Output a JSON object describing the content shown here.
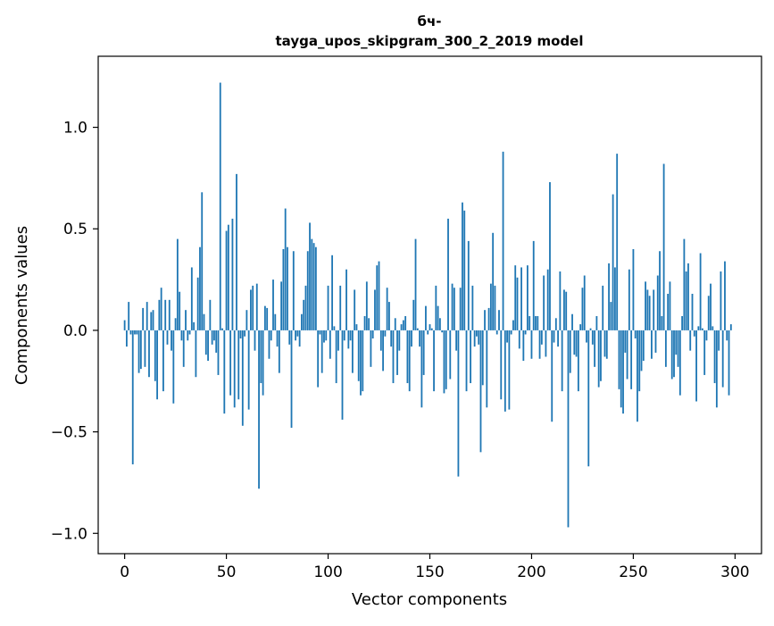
{
  "chart_data": {
    "type": "bar",
    "title_line1": "бч-",
    "title_line2": "tayga_upos_skipgram_300_2_2019 model",
    "xlabel": "Vector components",
    "ylabel": "Components values",
    "xlim": [
      -13,
      313
    ],
    "ylim": [
      -1.1,
      1.35
    ],
    "xticks": [
      0,
      50,
      100,
      150,
      200,
      250,
      300
    ],
    "xtick_labels": [
      "0",
      "50",
      "100",
      "150",
      "200",
      "250",
      "300"
    ],
    "yticks": [
      -1.0,
      -0.5,
      0.0,
      0.5,
      1.0
    ],
    "ytick_labels": [
      "−1.0",
      "−0.5",
      "0.0",
      "0.5",
      "1.0"
    ],
    "bar_color": "#1f77b4",
    "values": [
      0.05,
      -0.08,
      0.14,
      -0.02,
      -0.66,
      -0.02,
      -0.02,
      -0.21,
      -0.19,
      0.11,
      -0.18,
      0.14,
      -0.23,
      0.09,
      0.1,
      -0.25,
      -0.34,
      0.15,
      0.21,
      -0.3,
      0.15,
      -0.07,
      0.15,
      -0.1,
      -0.36,
      0.06,
      0.45,
      0.19,
      -0.05,
      -0.18,
      0.1,
      -0.05,
      -0.02,
      0.31,
      0.04,
      -0.23,
      0.26,
      0.41,
      0.68,
      0.08,
      -0.12,
      -0.15,
      0.15,
      -0.07,
      -0.05,
      -0.11,
      -0.22,
      1.22,
      0.01,
      -0.41,
      0.49,
      0.52,
      -0.32,
      0.55,
      -0.38,
      0.77,
      -0.34,
      -0.04,
      -0.47,
      -0.03,
      0.1,
      -0.39,
      0.2,
      0.22,
      -0.1,
      0.23,
      -0.78,
      -0.26,
      -0.32,
      0.12,
      0.11,
      -0.14,
      -0.05,
      0.25,
      0.08,
      -0.08,
      -0.21,
      0.24,
      0.4,
      0.6,
      0.41,
      -0.07,
      -0.48,
      0.39,
      -0.05,
      -0.03,
      -0.08,
      0.08,
      0.15,
      0.22,
      0.39,
      0.53,
      0.45,
      0.43,
      0.41,
      -0.28,
      -0.02,
      -0.21,
      -0.06,
      -0.05,
      0.22,
      -0.14,
      0.37,
      0.02,
      -0.26,
      -0.1,
      0.22,
      -0.44,
      -0.05,
      0.3,
      -0.09,
      -0.05,
      -0.21,
      0.2,
      0.03,
      -0.25,
      -0.32,
      -0.3,
      0.07,
      0.24,
      0.06,
      -0.18,
      -0.04,
      0.2,
      0.32,
      0.34,
      -0.1,
      -0.2,
      -0.03,
      0.21,
      0.14,
      -0.08,
      -0.26,
      0.06,
      -0.22,
      -0.1,
      0.03,
      0.05,
      0.07,
      -0.26,
      -0.3,
      -0.08,
      0.15,
      0.45,
      0.01,
      -0.08,
      -0.38,
      -0.22,
      0.12,
      -0.02,
      0.03,
      0.01,
      -0.3,
      0.22,
      0.12,
      0.06,
      -0.01,
      -0.31,
      -0.29,
      0.55,
      -0.24,
      0.23,
      0.21,
      -0.1,
      -0.72,
      0.21,
      0.63,
      0.59,
      -0.3,
      0.44,
      -0.26,
      0.22,
      -0.08,
      -0.03,
      -0.07,
      -0.6,
      -0.27,
      0.1,
      -0.38,
      0.11,
      0.23,
      0.48,
      0.22,
      -0.02,
      0.1,
      -0.34,
      0.88,
      -0.4,
      -0.06,
      -0.39,
      -0.02,
      0.05,
      0.32,
      0.26,
      -0.09,
      0.31,
      -0.15,
      -0.02,
      0.32,
      0.07,
      -0.14,
      0.44,
      0.07,
      0.07,
      -0.14,
      -0.07,
      0.27,
      -0.13,
      0.3,
      0.73,
      -0.45,
      -0.06,
      0.06,
      -0.08,
      0.29,
      -0.3,
      0.2,
      0.19,
      -0.97,
      -0.21,
      0.08,
      -0.12,
      -0.13,
      -0.3,
      0.03,
      0.21,
      0.27,
      -0.06,
      -0.67,
      0.01,
      -0.07,
      -0.18,
      0.07,
      -0.28,
      -0.25,
      0.22,
      -0.13,
      -0.14,
      0.33,
      0.14,
      0.67,
      0.31,
      0.87,
      -0.29,
      -0.38,
      -0.41,
      -0.11,
      -0.24,
      0.3,
      -0.29,
      0.4,
      -0.04,
      -0.45,
      -0.3,
      -0.2,
      -0.15,
      0.24,
      0.2,
      0.17,
      -0.14,
      0.2,
      -0.11,
      0.27,
      0.39,
      0.07,
      0.82,
      -0.18,
      0.18,
      0.24,
      -0.24,
      -0.23,
      -0.12,
      -0.18,
      -0.32,
      0.07,
      0.45,
      0.29,
      0.33,
      -0.1,
      0.18,
      -0.03,
      -0.35,
      0.02,
      0.38,
      0.01,
      -0.22,
      -0.05,
      0.17,
      0.23,
      0.02,
      -0.26,
      -0.38,
      -0.1,
      0.29,
      -0.28,
      0.34,
      -0.05,
      -0.32,
      0.03
    ]
  }
}
